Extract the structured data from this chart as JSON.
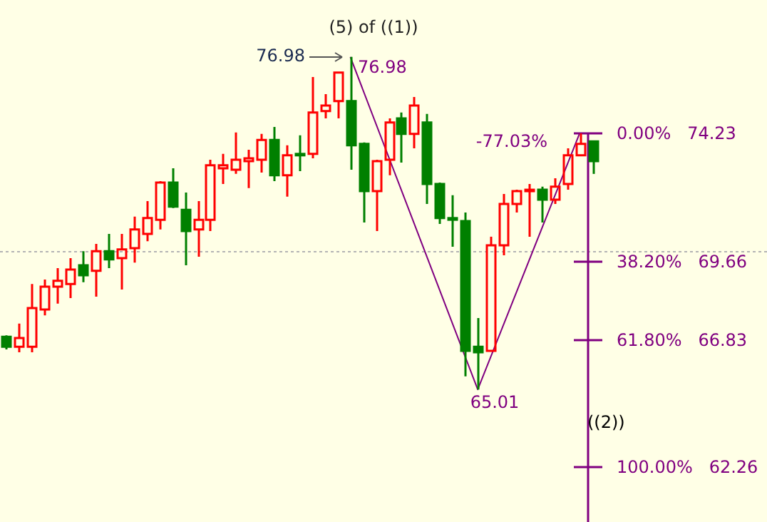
{
  "chart_data": {
    "type": "candlestick",
    "categories": [
      null,
      null,
      null,
      null,
      null,
      null,
      null,
      null,
      null,
      null,
      null,
      null,
      null,
      null,
      null,
      null,
      null,
      null,
      null,
      null,
      null,
      null,
      null,
      null,
      null,
      null,
      null,
      null,
      null,
      null,
      null,
      null,
      null,
      null,
      null,
      null,
      null,
      null,
      null,
      null,
      null,
      null,
      null,
      null,
      null,
      null,
      null
    ],
    "ohlc": [
      [
        66.91,
        66.96,
        66.45,
        66.55
      ],
      [
        66.55,
        67.38,
        66.35,
        66.86
      ],
      [
        66.55,
        68.81,
        66.35,
        67.94
      ],
      [
        67.89,
        68.97,
        67.68,
        68.71
      ],
      [
        68.71,
        69.38,
        68.1,
        68.92
      ],
      [
        68.81,
        69.74,
        68.3,
        69.33
      ],
      [
        69.48,
        69.99,
        68.87,
        69.12
      ],
      [
        69.28,
        70.25,
        68.35,
        69.99
      ],
      [
        69.99,
        70.61,
        69.38,
        69.69
      ],
      [
        69.74,
        70.61,
        68.61,
        70.05
      ],
      [
        70.1,
        71.23,
        69.58,
        70.77
      ],
      [
        70.61,
        71.79,
        70.35,
        71.18
      ],
      [
        71.12,
        72.51,
        70.77,
        72.46
      ],
      [
        72.46,
        72.97,
        71.54,
        71.59
      ],
      [
        71.48,
        72.1,
        69.48,
        70.71
      ],
      [
        70.77,
        71.79,
        69.79,
        71.12
      ],
      [
        71.12,
        73.28,
        70.71,
        73.08
      ],
      [
        72.97,
        73.49,
        72.41,
        73.08
      ],
      [
        72.92,
        74.26,
        72.77,
        73.28
      ],
      [
        73.23,
        73.64,
        72.26,
        73.33
      ],
      [
        73.28,
        74.21,
        72.82,
        73.99
      ],
      [
        73.99,
        74.46,
        72.51,
        72.72
      ],
      [
        72.72,
        73.8,
        71.95,
        73.44
      ],
      [
        73.49,
        74.16,
        72.87,
        73.44
      ],
      [
        73.49,
        76.26,
        73.33,
        74.98
      ],
      [
        75.03,
        75.64,
        74.77,
        75.23
      ],
      [
        75.39,
        76.42,
        74.77,
        76.42
      ],
      [
        75.39,
        76.98,
        72.92,
        73.8
      ],
      [
        73.85,
        73.9,
        71.02,
        72.15
      ],
      [
        72.15,
        73.28,
        70.71,
        73.23
      ],
      [
        73.28,
        74.77,
        72.72,
        74.62
      ],
      [
        74.77,
        74.98,
        73.18,
        74.21
      ],
      [
        74.21,
        75.54,
        73.69,
        75.23
      ],
      [
        74.62,
        74.93,
        71.69,
        72.41
      ],
      [
        72.41,
        72.46,
        70.97,
        71.18
      ],
      [
        71.18,
        72.0,
        70.15,
        71.12
      ],
      [
        71.07,
        71.38,
        65.48,
        66.4
      ],
      [
        66.55,
        67.58,
        65.01,
        66.35
      ],
      [
        66.4,
        70.51,
        66.4,
        70.2
      ],
      [
        70.2,
        72.05,
        69.84,
        71.69
      ],
      [
        71.69,
        72.2,
        71.38,
        72.15
      ],
      [
        72.15,
        72.41,
        70.51,
        72.2
      ],
      [
        72.2,
        72.31,
        71.02,
        71.84
      ],
      [
        71.84,
        72.61,
        71.69,
        72.31
      ],
      [
        72.41,
        73.69,
        72.2,
        73.44
      ],
      [
        73.44,
        74.23,
        73.44,
        73.85
      ],
      [
        73.94,
        73.94,
        72.77,
        73.23
      ]
    ],
    "colors": [
      "#008000",
      "#ff0000",
      "#ff0000",
      "#ff0000",
      "#ff0000",
      "#ff0000",
      "#008000",
      "#ff0000",
      "#008000",
      "#ff0000",
      "#ff0000",
      "#ff0000",
      "#ff0000",
      "#008000",
      "#008000",
      "#ff0000",
      "#ff0000",
      "#ff0000",
      "#ff0000",
      "#ff0000",
      "#ff0000",
      "#008000",
      "#ff0000",
      "#008000",
      "#ff0000",
      "#ff0000",
      "#ff0000",
      "#008000",
      "#008000",
      "#ff0000",
      "#ff0000",
      "#008000",
      "#ff0000",
      "#008000",
      "#008000",
      "#008000",
      "#008000",
      "#008000",
      "#ff0000",
      "#ff0000",
      "#ff0000",
      "#ff0000",
      "#008000",
      "#ff0000",
      "#ff0000",
      "#ff0000",
      "#008000"
    ],
    "series": [
      {
        "type": "line",
        "color": "#800080",
        "values": [
          null,
          null,
          null,
          null,
          null,
          null,
          null,
          null,
          null,
          null,
          null,
          null,
          null,
          null,
          null,
          null,
          null,
          null,
          null,
          null,
          null,
          null,
          null,
          null,
          null,
          null,
          null,
          76.98,
          null,
          null,
          null,
          null,
          null,
          null,
          null,
          null,
          null,
          65.01,
          null,
          null,
          null,
          null,
          null,
          null,
          null,
          74.23,
          null
        ]
      }
    ],
    "ylim": [
      60.24,
      79.03
    ],
    "ref_lines": [
      {
        "axis": "y",
        "value": 70.0,
        "color": "#b4b4b4",
        "line_style": "dotted"
      },
      {
        "axis": "y",
        "value": 74.23,
        "label": "0.00%   74.23",
        "color": "#800080"
      },
      {
        "axis": "y",
        "value": 69.66,
        "label": "38.20%   69.66",
        "color": "#800080"
      },
      {
        "axis": "y",
        "value": 66.83,
        "label": "61.80%   66.83",
        "color": "#800080"
      },
      {
        "axis": "y",
        "value": 62.26,
        "label": "100.00%   62.26",
        "color": "#800080"
      }
    ],
    "annotations": [
      "(5) of ((1))",
      "76.98",
      "76.98",
      "65.01",
      "-77.03%",
      "((2))"
    ]
  }
}
